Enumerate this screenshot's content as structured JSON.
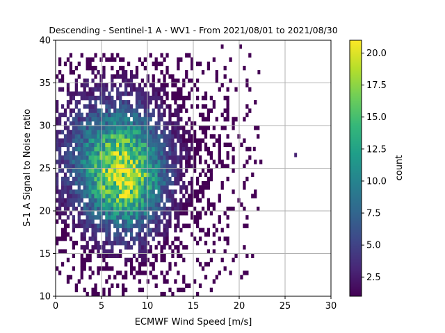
{
  "chart_data": {
    "type": "heatmap",
    "title": "Descending - Sentinel-1 A - WV1 - From 2021/08/01 to 2021/08/30",
    "xlabel": "ECMWF Wind Speed [m/s]",
    "ylabel": "S-1 A Signal to Noise ratio",
    "xlim": [
      0,
      30
    ],
    "ylim": [
      10,
      40
    ],
    "x_ticks": [
      "0",
      "5",
      "10",
      "15",
      "20",
      "25",
      "30"
    ],
    "y_ticks": [
      "10",
      "15",
      "20",
      "25",
      "30",
      "35",
      "40"
    ],
    "grid": true,
    "bin_size": [
      0.3,
      0.5
    ],
    "density_center": [
      7.5,
      24.0
    ],
    "density_spread": [
      3.0,
      4.5
    ],
    "peak_count": 21,
    "colorbar": {
      "label": "count",
      "range": [
        1,
        21
      ],
      "ticks": [
        "2.5",
        "5.0",
        "7.5",
        "10.0",
        "12.5",
        "15.0",
        "17.5",
        "20.0"
      ],
      "colormap": "viridis"
    }
  }
}
